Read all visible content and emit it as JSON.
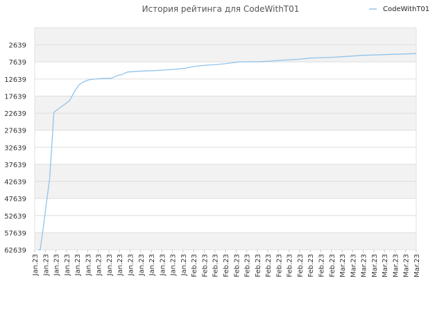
{
  "chart_data": {
    "type": "line",
    "title": "История рейтинга для CodeWithT01",
    "xlabel": "",
    "ylabel": "",
    "legend_position": "top-right",
    "grid": true,
    "y_inverted": true,
    "ylim": [
      2639,
      62639
    ],
    "yticks": [
      2639,
      7639,
      12639,
      17639,
      22639,
      27639,
      32639,
      37639,
      42639,
      47639,
      52639,
      57639,
      62639
    ],
    "x_tick_labels": [
      "Jan.23",
      "Jan.23",
      "Jan.23",
      "Jan.23",
      "Jan.23",
      "Jan.23",
      "Jan.23",
      "Jan.23",
      "Jan.23",
      "Jan.23",
      "Jan.23",
      "Jan.23",
      "Jan.23",
      "Jan.23",
      "Jan.23",
      "Feb.23",
      "Feb.23",
      "Feb.23",
      "Feb.23",
      "Feb.23",
      "Feb.23",
      "Feb.23",
      "Feb.23",
      "Feb.23",
      "Feb.23",
      "Feb.23",
      "Feb.23",
      "Feb.23",
      "Feb.23",
      "Mar.23",
      "Mar.23",
      "Mar.23",
      "Mar.23",
      "Mar.23",
      "Mar.23",
      "Mar.23",
      "Mar.23"
    ],
    "series": [
      {
        "name": "CodeWithT01",
        "color": "#8fc3ea",
        "x": [
          0.0,
          0.2,
          0.5,
          1.1,
          1.5,
          2.0,
          2.6,
          3.0,
          3.5,
          3.9,
          4.3,
          4.8,
          5.3,
          6.0,
          7.0,
          7.5,
          8.0,
          8.5,
          9.0,
          10.0,
          11.0,
          12.0,
          13.0,
          14.0,
          15.0,
          16.0,
          17.0,
          18.0,
          19.0,
          20.0,
          21.0,
          22.0,
          23.0,
          24.0,
          25.0,
          26.0,
          27.0,
          28.0,
          29.0,
          30.0,
          31.0,
          32.0,
          33.0,
          34.0,
          35.0,
          36.0
        ],
        "y": [
          62639,
          62639,
          55800,
          41500,
          22400,
          21200,
          19900,
          18900,
          16100,
          14300,
          13500,
          12900,
          12700,
          12500,
          12400,
          11700,
          11300,
          10600,
          10500,
          10300,
          10200,
          10000,
          9800,
          9500,
          8900,
          8600,
          8400,
          8100,
          7700,
          7600,
          7600,
          7400,
          7200,
          7000,
          6800,
          6500,
          6400,
          6300,
          6100,
          5900,
          5700,
          5600,
          5500,
          5400,
          5300,
          5200
        ]
      }
    ]
  }
}
